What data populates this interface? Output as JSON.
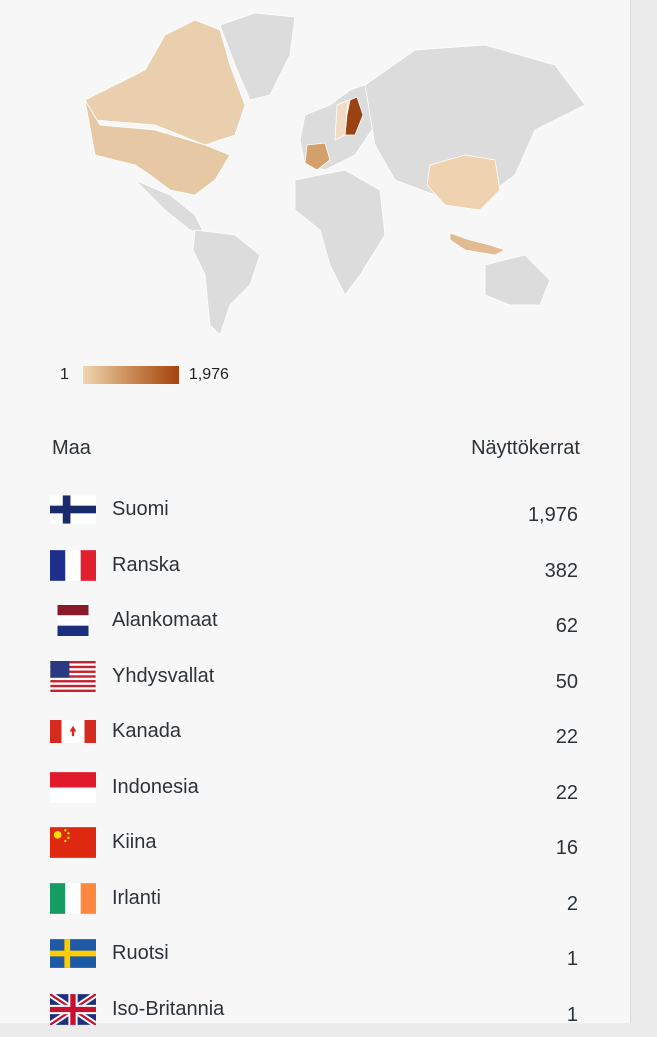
{
  "legend": {
    "min": "1",
    "max": "1,976",
    "colors": [
      "#f0d6b0",
      "#a8420e"
    ]
  },
  "table": {
    "col_country": "Maa",
    "col_views": "Näyttökerrat",
    "rows": [
      {
        "country": "Suomi",
        "views": "1,976",
        "flag": "finland-flag"
      },
      {
        "country": "Ranska",
        "views": "382",
        "flag": "france-flag"
      },
      {
        "country": "Alankomaat",
        "views": "62",
        "flag": "netherlands-flag"
      },
      {
        "country": "Yhdysvallat",
        "views": "50",
        "flag": "usa-flag"
      },
      {
        "country": "Kanada",
        "views": "22",
        "flag": "canada-flag"
      },
      {
        "country": "Indonesia",
        "views": "22",
        "flag": "indonesia-flag"
      },
      {
        "country": "Kiina",
        "views": "16",
        "flag": "china-flag"
      },
      {
        "country": "Irlanti",
        "views": "2",
        "flag": "ireland-flag"
      },
      {
        "country": "Ruotsi",
        "views": "1",
        "flag": "sweden-flag"
      },
      {
        "country": "Iso-Britannia",
        "views": "1",
        "flag": "uk-flag"
      }
    ]
  }
}
